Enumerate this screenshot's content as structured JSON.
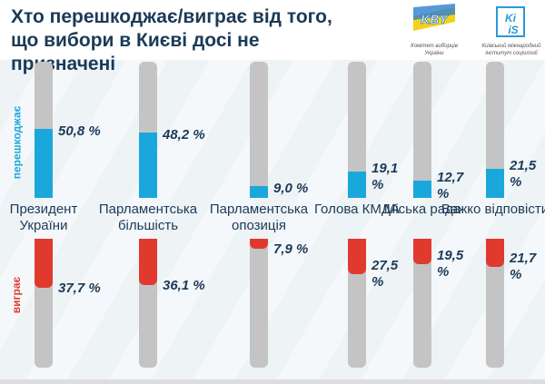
{
  "title": "Хто перешкоджає/виграє від того, що вибори в Києві досі не призначені",
  "logos": [
    {
      "mark": "KBY",
      "caption": "Комітет виборців України"
    },
    {
      "mark": "KIIS",
      "caption": "Київський міжнародний інститут соціології"
    }
  ],
  "chart_data": {
    "type": "bar",
    "title": "Хто перешкоджає/виграє від того, що вибори в Києві досі не призначені",
    "categories": [
      "Президент України",
      "Парламентська більшість",
      "Парламентська опозиція",
      "Голова КМДА",
      "Міська рада",
      "Важко відповісти"
    ],
    "series": [
      {
        "name": "перешкоджає",
        "color": "#1aa7dc",
        "values": [
          50.8,
          48.2,
          9.0,
          19.1,
          12.7,
          21.5
        ],
        "labels": [
          "50,8 %",
          "48,2 %",
          "9,0 %",
          "19,1 %",
          "12,7 %",
          "21,5 %"
        ]
      },
      {
        "name": "виграє",
        "color": "#e03a2e",
        "values": [
          37.7,
          36.1,
          7.9,
          27.5,
          19.5,
          21.7
        ],
        "labels": [
          "37,7 %",
          "36,1 %",
          "7,9 %",
          "27,5 %",
          "19,5 %",
          "21,7 %"
        ]
      }
    ],
    "ylim": [
      0,
      100
    ]
  }
}
